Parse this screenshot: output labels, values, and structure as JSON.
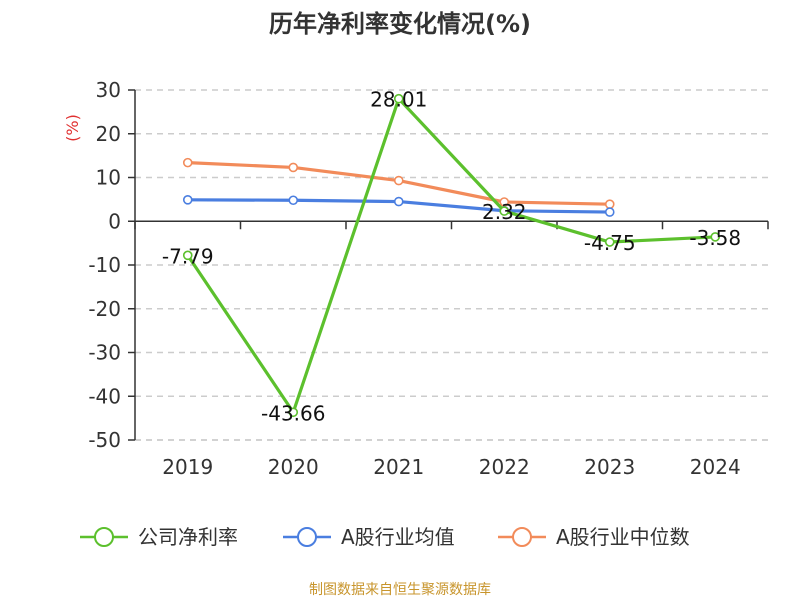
{
  "chart_data": {
    "type": "line",
    "title": "历年净利率变化情况(%)",
    "ylabel": "(%)",
    "xlabel": "",
    "categories": [
      "2019",
      "2020",
      "2021",
      "2022",
      "2023",
      "2024"
    ],
    "ylim": [
      -50,
      30
    ],
    "yticks": [
      30,
      20,
      10,
      0,
      -10,
      -20,
      -30,
      -40,
      -50
    ],
    "grid": true,
    "legend_position": "bottom",
    "series": [
      {
        "name": "公司净利率",
        "color": "#5cc02d",
        "values": [
          -7.79,
          -43.66,
          28.01,
          2.32,
          -4.75,
          -3.58
        ],
        "labels": [
          "-7.79",
          "-43.66",
          "28.01",
          "2.32",
          "-4.75",
          "-3.58"
        ]
      },
      {
        "name": "A股行业均值",
        "color": "#4a7ee0",
        "values": [
          4.9,
          4.8,
          4.5,
          2.4,
          2.1,
          null
        ]
      },
      {
        "name": "A股行业中位数",
        "color": "#f28b5a",
        "values": [
          13.4,
          12.3,
          9.3,
          4.4,
          3.9,
          null
        ]
      }
    ]
  },
  "axis_label_color": "#e03030",
  "source_text": "制图数据来自恒生聚源数据库",
  "source_color": "#c8952c"
}
